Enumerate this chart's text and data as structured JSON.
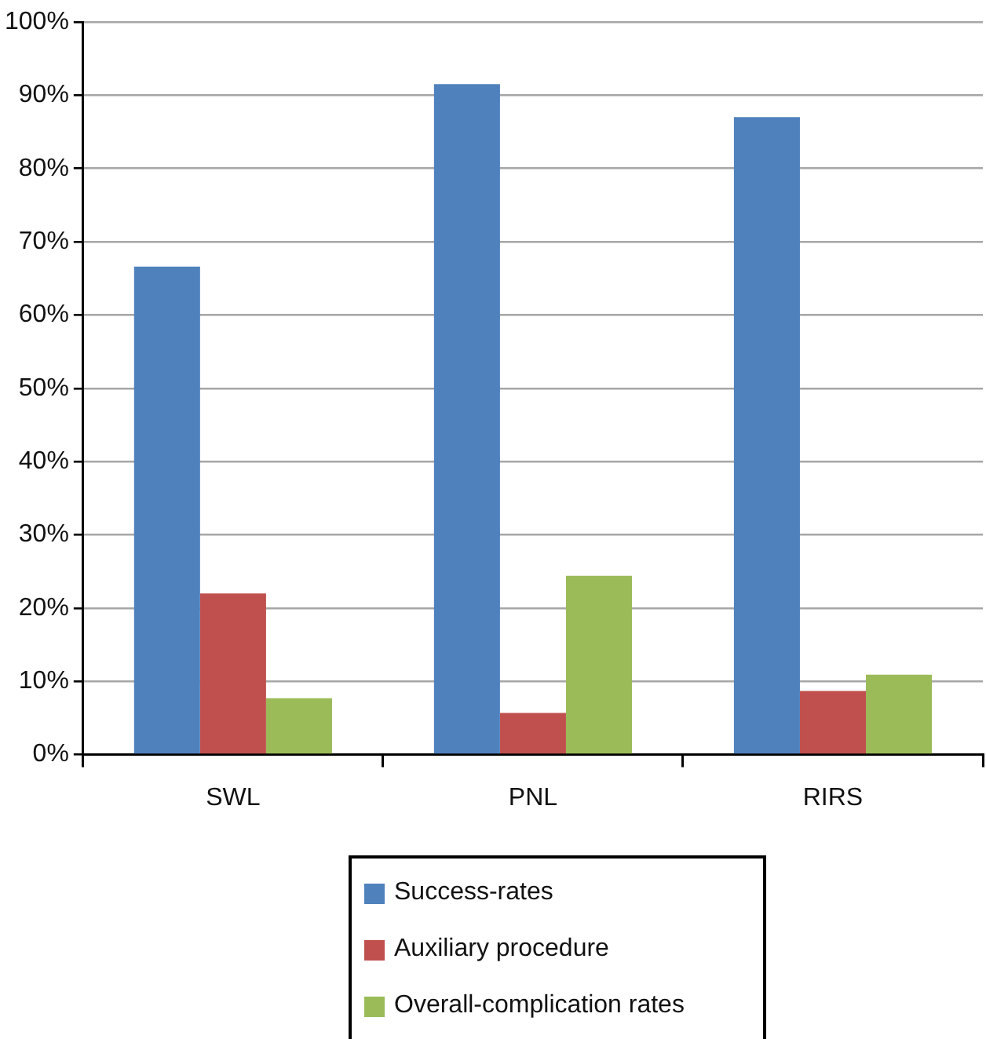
{
  "chart_data": {
    "type": "bar",
    "categories": [
      "SWL",
      "PNL",
      "RIRS"
    ],
    "series": [
      {
        "name": "Success-rates",
        "color": "#4f81bd",
        "values": [
          66.6,
          91.5,
          87.0
        ]
      },
      {
        "name": "Auxiliary procedure",
        "color": "#c0504d",
        "values": [
          22.0,
          5.7,
          8.7
        ]
      },
      {
        "name": "Overall-complication rates",
        "color": "#9bbb59",
        "values": [
          7.7,
          24.4,
          10.9
        ]
      }
    ],
    "ylim": [
      0,
      100
    ],
    "yticks": [
      {
        "value": 0,
        "label": "0%"
      },
      {
        "value": 10,
        "label": "10%"
      },
      {
        "value": 20,
        "label": "20%"
      },
      {
        "value": 30,
        "label": "30%"
      },
      {
        "value": 40,
        "label": "40%"
      },
      {
        "value": 50,
        "label": "50%"
      },
      {
        "value": 60,
        "label": "60%"
      },
      {
        "value": 70,
        "label": "70%"
      },
      {
        "value": 80,
        "label": "80%"
      },
      {
        "value": 90,
        "label": "90%"
      },
      {
        "value": 100,
        "label": "100%"
      }
    ],
    "grid": "y",
    "legend": "bottom"
  }
}
